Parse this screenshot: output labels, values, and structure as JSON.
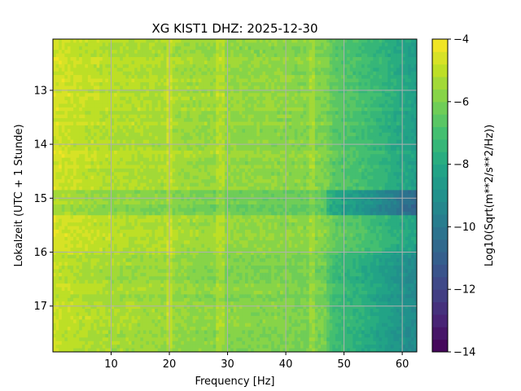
{
  "chart_data": {
    "type": "heatmap",
    "title": "XG KIST1  DHZ: 2025-12-30",
    "xlabel": "Frequency [Hz]",
    "ylabel": "Lokalzeit (UTC + 1 Stunde)",
    "xlim": [
      0,
      62.5
    ],
    "ylim": [
      17.85,
      12.05
    ],
    "xticks": [
      10,
      20,
      30,
      40,
      50,
      60
    ],
    "xtick_labels": [
      "10",
      "20",
      "30",
      "40",
      "50",
      "60"
    ],
    "yticks": [
      13,
      14,
      15,
      16,
      17
    ],
    "ytick_labels": [
      "13",
      "14",
      "15",
      "16",
      "17"
    ],
    "grid": true,
    "colormap": "viridis",
    "colorbar": {
      "label": "Log10(Sqrt(m**2/s**2/Hz))",
      "vmin": -14,
      "vmax": -4,
      "levels": 25,
      "ticks": [
        -14,
        -12,
        -10,
        -8,
        -6,
        -4
      ],
      "tick_labels": [
        "−14",
        "−12",
        "−10",
        "−8",
        "−6",
        "−4"
      ]
    },
    "spectral_profile": {
      "frequency_hz": [
        0,
        5,
        10,
        20,
        25,
        30,
        40,
        47,
        48,
        52,
        56,
        60,
        62.5
      ],
      "log_amplitude": [
        -4.6,
        -4.9,
        -5.1,
        -5.3,
        -5.5,
        -5.6,
        -5.7,
        -5.9,
        -6.5,
        -6.9,
        -7.4,
        -8.0,
        -8.4
      ]
    },
    "time_bands": [
      {
        "start": 12.05,
        "end": 14.85,
        "offset": 0.0
      },
      {
        "start": 14.85,
        "end": 15.35,
        "offset": -1.4
      },
      {
        "start": 15.35,
        "end": 16.0,
        "offset": 0.1
      },
      {
        "start": 16.0,
        "end": 16.15,
        "offset": -0.4
      },
      {
        "start": 16.15,
        "end": 17.85,
        "offset": -0.6
      }
    ],
    "narrowband_lines_hz": [
      20,
      28.5,
      29.2,
      44.5
    ]
  }
}
